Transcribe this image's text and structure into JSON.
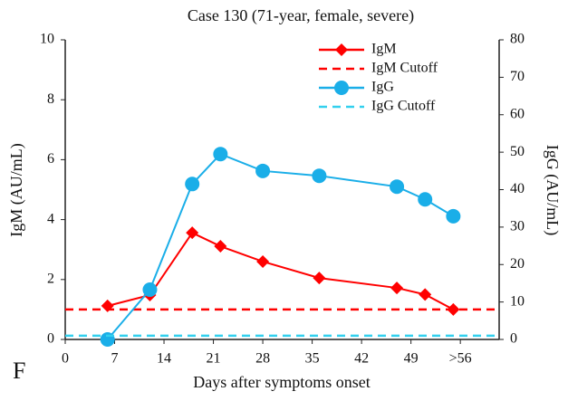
{
  "chart_data": {
    "type": "line",
    "title": "Case 130 (71-year, female, severe)",
    "xlabel": "Days after symptoms onset",
    "ylabel": "IgM (AU/mL)",
    "y2label": "IgG (AU/mL)",
    "panel_label": "F",
    "xlim": [
      0,
      61.5
    ],
    "xticks": [
      0,
      7,
      14,
      21,
      28,
      35,
      42,
      49,
      {
        "value": 56,
        "label": ">56"
      }
    ],
    "ylim": [
      0,
      10
    ],
    "yticks": [
      0,
      2,
      4,
      6,
      8,
      10
    ],
    "y2lim": [
      0,
      80
    ],
    "y2ticks": [
      0,
      10,
      20,
      30,
      40,
      50,
      60,
      70,
      80
    ],
    "legend": "upper right",
    "series": [
      {
        "name": "IgM",
        "color": "#ff0000",
        "marker": "diamond",
        "axis": "y",
        "x": [
          6,
          12,
          18,
          22,
          28,
          36,
          47,
          51,
          55
        ],
        "values": [
          1.12,
          1.48,
          3.56,
          3.11,
          2.6,
          2.05,
          1.72,
          1.5,
          1.0
        ]
      },
      {
        "name": "IgM Cutoff",
        "color": "#ff0000",
        "dashed": true,
        "axis": "y",
        "value": 1.0
      },
      {
        "name": "IgG",
        "color": "#1aaee8",
        "marker": "circle",
        "axis": "y2",
        "x": [
          6,
          12,
          18,
          22,
          28,
          36,
          47,
          51,
          55
        ],
        "values": [
          0,
          13.3,
          41.5,
          49.5,
          45,
          43.7,
          40.8,
          37.4,
          32.9
        ]
      },
      {
        "name": "IgG Cutoff",
        "color": "#33d0ee",
        "dashed": true,
        "axis": "y2",
        "value": 1
      }
    ]
  }
}
